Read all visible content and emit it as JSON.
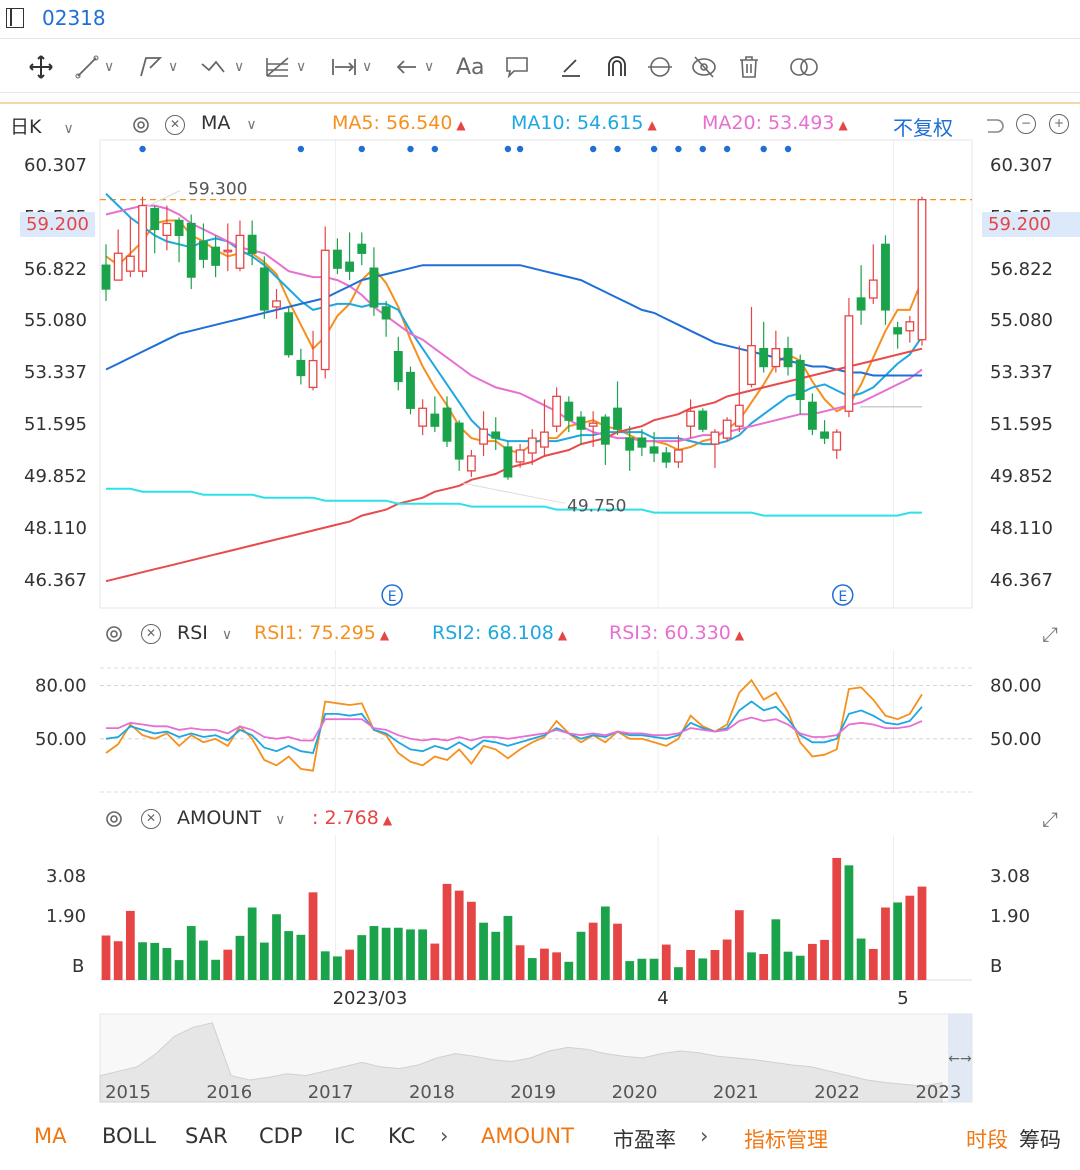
{
  "header": {
    "stock_code": "02318"
  },
  "kline_header": {
    "period": "日K",
    "indicator": "MA",
    "ma5_label": "MA5:",
    "ma5_value": "56.540",
    "ma10_label": "MA10:",
    "ma10_value": "54.615",
    "ma20_label": "MA20:",
    "ma20_value": "53.493",
    "adjust": "不复权"
  },
  "rsi_header": {
    "indicator": "RSI",
    "rsi1_label": "RSI1:",
    "rsi1_value": "75.295",
    "rsi2_label": "RSI2:",
    "rsi2_value": "68.108",
    "rsi3_label": "RSI3:",
    "rsi3_value": "60.330"
  },
  "amount_header": {
    "indicator": "AMOUNT",
    "value": ": 2.768"
  },
  "price_axis": [
    "60.307",
    "58.565",
    "56.822",
    "55.080",
    "53.337",
    "51.595",
    "49.852",
    "48.110",
    "46.367"
  ],
  "current_price": "59.200",
  "rsi_axis": [
    "80.00",
    "50.00"
  ],
  "amount_axis": [
    "3.08",
    "1.90",
    "B"
  ],
  "x_axis": [
    "2023/03",
    "4",
    "5"
  ],
  "overview_years": [
    "2015",
    "2016",
    "2017",
    "2018",
    "2019",
    "2020",
    "2021",
    "2022",
    "2023"
  ],
  "bottom_tabs": [
    "MA",
    "BOLL",
    "SAR",
    "CDP",
    "IC",
    "KC",
    "AMOUNT",
    "市盈率",
    "指标管理",
    "时段",
    "筹码"
  ],
  "colors": {
    "up": "#e64545",
    "down": "#1aa34a",
    "ma5": "#f5901e",
    "ma10": "#1ea7e0",
    "ma20": "#e86fd2",
    "ma60": "#1e6fd6",
    "ma120": "#e84b4b",
    "ma250": "#2ee0e8"
  },
  "chart_data": {
    "type": "candlestick",
    "title": "",
    "ylim": [
      45.5,
      61.2
    ],
    "annotations": [
      {
        "text": "59.300",
        "value": 59.3
      },
      {
        "text": "49.750",
        "value": 49.75
      }
    ],
    "event_markers": [
      "E",
      "E"
    ],
    "candles": [
      [
        57.0,
        56.2,
        57.7,
        55.8
      ],
      [
        56.5,
        57.4,
        58.2,
        56.5
      ],
      [
        56.8,
        57.3,
        58.6,
        56.6
      ],
      [
        56.8,
        59.0,
        59.3,
        56.6
      ],
      [
        58.9,
        58.2,
        59.0,
        57.4
      ],
      [
        58.0,
        58.4,
        59.0,
        57.5
      ],
      [
        58.5,
        58.0,
        58.6,
        57.1
      ],
      [
        58.4,
        56.6,
        58.7,
        56.2
      ],
      [
        57.8,
        57.2,
        58.4,
        56.9
      ],
      [
        57.6,
        57.0,
        58.0,
        56.6
      ],
      [
        57.5,
        57.5,
        58.4,
        56.8
      ],
      [
        56.9,
        58.0,
        58.5,
        56.8
      ],
      [
        58.0,
        57.4,
        58.5,
        57.0
      ],
      [
        56.9,
        55.5,
        57.3,
        55.2
      ],
      [
        55.6,
        55.8,
        56.2,
        55.2
      ],
      [
        55.4,
        54.0,
        55.6,
        53.9
      ],
      [
        53.8,
        53.3,
        54.2,
        53.0
      ],
      [
        52.9,
        53.8,
        54.8,
        52.8
      ],
      [
        53.5,
        57.5,
        58.3,
        53.2
      ],
      [
        57.5,
        56.9,
        57.9,
        56.7
      ],
      [
        57.1,
        56.8,
        58.1,
        56.5
      ],
      [
        57.7,
        57.4,
        58.1,
        57.0
      ],
      [
        56.9,
        55.6,
        57.6,
        55.3
      ],
      [
        55.6,
        55.2,
        55.8,
        54.6
      ],
      [
        54.1,
        53.1,
        54.6,
        52.8
      ],
      [
        53.4,
        52.2,
        53.6,
        52.0
      ],
      [
        51.6,
        52.2,
        52.5,
        51.3
      ],
      [
        52.0,
        51.6,
        52.6,
        51.4
      ],
      [
        52.2,
        51.1,
        52.6,
        50.9
      ],
      [
        51.7,
        50.5,
        51.8,
        50.1
      ],
      [
        50.1,
        50.6,
        50.8,
        49.9
      ],
      [
        51.0,
        51.5,
        52.1,
        50.6
      ],
      [
        51.4,
        51.2,
        51.9,
        50.8
      ],
      [
        50.9,
        49.9,
        51.1,
        49.8
      ],
      [
        50.4,
        50.8,
        51.0,
        50.2
      ],
      [
        50.7,
        51.2,
        51.5,
        50.3
      ],
      [
        50.9,
        51.4,
        52.5,
        50.6
      ],
      [
        51.6,
        52.6,
        52.9,
        51.4
      ],
      [
        52.4,
        51.8,
        52.6,
        51.4
      ],
      [
        51.9,
        51.5,
        52.1,
        51.0
      ],
      [
        51.6,
        51.7,
        52.1,
        50.9
      ],
      [
        51.9,
        51.0,
        52.0,
        50.3
      ],
      [
        52.2,
        51.5,
        53.1,
        51.3
      ],
      [
        51.2,
        50.8,
        51.6,
        50.1
      ],
      [
        51.2,
        50.9,
        51.5,
        50.6
      ],
      [
        50.9,
        50.7,
        51.4,
        50.4
      ],
      [
        50.7,
        50.4,
        50.9,
        50.2
      ],
      [
        50.4,
        50.8,
        51.3,
        50.2
      ],
      [
        51.6,
        52.1,
        52.5,
        51.2
      ],
      [
        52.1,
        51.5,
        52.2,
        51.4
      ],
      [
        51.0,
        51.4,
        51.5,
        50.2
      ],
      [
        51.2,
        51.8,
        51.9,
        51.1
      ],
      [
        51.6,
        52.3,
        54.3,
        51.4
      ],
      [
        53.0,
        54.3,
        55.6,
        52.9
      ],
      [
        54.2,
        53.6,
        55.1,
        53.4
      ],
      [
        53.6,
        54.2,
        54.8,
        53.4
      ],
      [
        54.2,
        53.6,
        54.6,
        53.3
      ],
      [
        53.8,
        52.5,
        54.0,
        52.0
      ],
      [
        52.4,
        51.5,
        52.7,
        51.3
      ],
      [
        51.4,
        51.2,
        51.8,
        51.0
      ],
      [
        50.8,
        51.4,
        51.5,
        50.5
      ],
      [
        52.1,
        55.3,
        55.9,
        51.9
      ],
      [
        55.9,
        55.5,
        57.0,
        55.0
      ],
      [
        55.9,
        56.5,
        57.7,
        55.7
      ],
      [
        57.7,
        55.5,
        58.0,
        55.0
      ],
      [
        54.9,
        54.7,
        55.1,
        54.2
      ],
      [
        54.8,
        55.1,
        55.3,
        54.4
      ],
      [
        54.5,
        59.2,
        59.3,
        54.3
      ]
    ],
    "ma_series": [
      {
        "name": "MA5",
        "values": [
          57.3,
          57.0,
          57.4,
          57.8,
          58.4,
          58.5,
          58.5,
          58.0,
          57.8,
          57.5,
          57.3,
          57.4,
          57.4,
          57.1,
          56.7,
          55.8,
          55.0,
          54.2,
          54.6,
          55.3,
          55.7,
          56.5,
          56.9,
          56.4,
          55.6,
          54.5,
          53.6,
          52.9,
          52.3,
          51.6,
          51.2,
          51.1,
          51.1,
          50.8,
          50.7,
          51.0,
          51.2,
          51.2,
          51.6,
          51.7,
          51.8,
          51.6,
          51.5,
          51.3,
          51.1,
          51.1,
          51.0,
          50.8,
          50.9,
          51.1,
          51.2,
          51.5,
          51.8,
          52.4,
          53.0,
          53.7,
          54.0,
          53.8,
          53.1,
          52.5,
          52.1,
          52.3,
          53.0,
          53.9,
          54.8,
          55.5,
          55.5,
          56.5
        ]
      },
      {
        "name": "MA10",
        "values": [
          59.4,
          59.0,
          58.6,
          58.3,
          58.0,
          57.8,
          57.7,
          57.6,
          57.8,
          57.9,
          57.8,
          57.5,
          57.3,
          57.0,
          56.6,
          56.2,
          55.8,
          55.5,
          55.6,
          55.7,
          55.7,
          55.6,
          55.7,
          55.7,
          55.5,
          54.8,
          54.2,
          53.6,
          53.0,
          52.4,
          51.8,
          51.4,
          51.2,
          51.1,
          51.1,
          51.1,
          51.1,
          51.1,
          51.2,
          51.3,
          51.3,
          51.4,
          51.4,
          51.4,
          51.4,
          51.2,
          51.2,
          51.2,
          51.1,
          51.0,
          51.0,
          51.1,
          51.3,
          51.7,
          52.0,
          52.3,
          52.6,
          52.7,
          52.9,
          53.0,
          52.8,
          52.6,
          52.7,
          52.9,
          53.3,
          53.7,
          54.0,
          54.6
        ]
      },
      {
        "name": "MA20",
        "values": [
          58.7,
          58.8,
          58.9,
          59.0,
          59.0,
          58.9,
          58.7,
          58.4,
          58.2,
          58.0,
          57.8,
          57.6,
          57.5,
          57.4,
          57.1,
          56.8,
          56.7,
          56.6,
          56.6,
          56.5,
          56.3,
          56.0,
          55.6,
          55.3,
          55.0,
          54.7,
          54.5,
          54.2,
          53.9,
          53.6,
          53.3,
          53.1,
          52.9,
          52.8,
          52.7,
          52.5,
          52.3,
          52.1,
          51.8,
          51.6,
          51.4,
          51.3,
          51.2,
          51.2,
          51.1,
          51.1,
          51.1,
          51.1,
          51.2,
          51.3,
          51.3,
          51.4,
          51.5,
          51.6,
          51.7,
          51.8,
          51.9,
          52.0,
          52.0,
          52.1,
          52.2,
          52.3,
          52.4,
          52.6,
          52.8,
          53.0,
          53.2,
          53.5
        ]
      },
      {
        "name": "MA60",
        "values": [
          53.5,
          53.7,
          53.9,
          54.1,
          54.3,
          54.5,
          54.7,
          54.8,
          54.9,
          55.0,
          55.1,
          55.2,
          55.3,
          55.4,
          55.5,
          55.6,
          55.7,
          55.8,
          55.9,
          56.1,
          56.3,
          56.5,
          56.6,
          56.7,
          56.8,
          56.9,
          57.0,
          57.0,
          57.0,
          57.0,
          57.0,
          57.0,
          57.0,
          57.0,
          57.0,
          56.9,
          56.8,
          56.7,
          56.6,
          56.5,
          56.3,
          56.1,
          55.9,
          55.7,
          55.5,
          55.4,
          55.2,
          55.0,
          54.8,
          54.6,
          54.4,
          54.3,
          54.2,
          54.1,
          54.0,
          53.9,
          53.8,
          53.7,
          53.6,
          53.6,
          53.5,
          53.4,
          53.4,
          53.3,
          53.3,
          53.3,
          53.3,
          53.3
        ]
      },
      {
        "name": "MA120",
        "values": [
          46.4,
          46.5,
          46.6,
          46.7,
          46.8,
          46.9,
          47.0,
          47.1,
          47.2,
          47.3,
          47.4,
          47.5,
          47.6,
          47.7,
          47.8,
          47.9,
          48.0,
          48.1,
          48.2,
          48.3,
          48.4,
          48.6,
          48.7,
          48.8,
          49.0,
          49.1,
          49.2,
          49.4,
          49.5,
          49.6,
          49.8,
          49.9,
          50.0,
          50.2,
          50.3,
          50.4,
          50.6,
          50.7,
          50.8,
          51.0,
          51.1,
          51.2,
          51.4,
          51.5,
          51.6,
          51.8,
          51.9,
          52.0,
          52.2,
          52.3,
          52.4,
          52.6,
          52.7,
          52.8,
          52.9,
          53.0,
          53.1,
          53.2,
          53.3,
          53.4,
          53.5,
          53.6,
          53.7,
          53.8,
          53.9,
          54.0,
          54.1,
          54.2
        ]
      },
      {
        "name": "MA250",
        "values": [
          49.5,
          49.5,
          49.5,
          49.4,
          49.4,
          49.4,
          49.4,
          49.4,
          49.3,
          49.3,
          49.3,
          49.3,
          49.3,
          49.2,
          49.2,
          49.2,
          49.2,
          49.2,
          49.1,
          49.1,
          49.1,
          49.1,
          49.1,
          49.1,
          49.0,
          49.0,
          49.0,
          49.0,
          49.0,
          49.0,
          48.9,
          48.9,
          48.9,
          48.9,
          48.9,
          48.9,
          48.9,
          48.8,
          48.8,
          48.8,
          48.8,
          48.8,
          48.8,
          48.8,
          48.8,
          48.7,
          48.7,
          48.7,
          48.7,
          48.7,
          48.7,
          48.7,
          48.7,
          48.7,
          48.6,
          48.6,
          48.6,
          48.6,
          48.6,
          48.6,
          48.6,
          48.6,
          48.6,
          48.6,
          48.6,
          48.6,
          48.7,
          48.7
        ]
      }
    ],
    "rsi": {
      "ylim": [
        20,
        100
      ],
      "series": [
        {
          "name": "RSI1",
          "values": [
            42,
            47,
            58,
            52,
            50,
            53,
            46,
            52,
            48,
            50,
            46,
            57,
            50,
            38,
            35,
            40,
            33,
            32,
            71,
            70,
            69,
            70,
            55,
            52,
            42,
            37,
            35,
            40,
            38,
            44,
            36,
            46,
            44,
            39,
            44,
            48,
            51,
            60,
            53,
            48,
            52,
            48,
            54,
            50,
            50,
            48,
            46,
            50,
            63,
            57,
            54,
            58,
            76,
            83,
            72,
            76,
            65,
            48,
            40,
            41,
            44,
            78,
            79,
            72,
            63,
            61,
            64,
            75
          ]
        },
        {
          "name": "RSI2",
          "values": [
            50,
            51,
            57,
            55,
            53,
            54,
            51,
            53,
            51,
            52,
            49,
            55,
            52,
            45,
            43,
            46,
            43,
            42,
            64,
            64,
            63,
            64,
            55,
            53,
            48,
            44,
            43,
            46,
            44,
            48,
            44,
            49,
            48,
            46,
            48,
            50,
            52,
            56,
            53,
            50,
            52,
            51,
            54,
            52,
            52,
            51,
            50,
            52,
            59,
            56,
            54,
            56,
            66,
            71,
            66,
            68,
            61,
            52,
            48,
            48,
            50,
            64,
            66,
            63,
            59,
            58,
            60,
            68
          ]
        },
        {
          "name": "RSI3",
          "values": [
            56,
            56,
            59,
            58,
            57,
            57,
            55,
            56,
            55,
            55,
            53,
            57,
            55,
            51,
            50,
            51,
            49,
            49,
            61,
            61,
            61,
            61,
            56,
            55,
            52,
            50,
            49,
            50,
            49,
            51,
            49,
            51,
            51,
            50,
            51,
            52,
            53,
            55,
            53,
            52,
            53,
            52,
            54,
            53,
            53,
            52,
            52,
            53,
            56,
            55,
            54,
            55,
            60,
            62,
            60,
            61,
            58,
            53,
            51,
            51,
            52,
            58,
            59,
            58,
            56,
            56,
            57,
            60
          ]
        }
      ]
    },
    "amount": {
      "ylim": [
        0,
        4.3
      ],
      "values": [
        1.32,
        1.15,
        2.05,
        1.12,
        1.1,
        0.95,
        0.59,
        1.6,
        1.17,
        0.6,
        0.9,
        1.31,
        2.15,
        1.11,
        1.95,
        1.45,
        1.34,
        2.6,
        0.85,
        0.7,
        0.9,
        1.33,
        1.6,
        1.55,
        1.55,
        1.5,
        1.5,
        1.08,
        2.85,
        2.65,
        2.32,
        1.7,
        1.43,
        1.9,
        1.03,
        0.65,
        0.93,
        0.82,
        0.54,
        1.43,
        1.7,
        2.18,
        1.67,
        0.56,
        0.63,
        0.63,
        1.05,
        0.38,
        0.89,
        0.64,
        0.89,
        1.2,
        2.07,
        0.82,
        0.77,
        1.8,
        0.84,
        0.72,
        1.07,
        1.19,
        3.62,
        3.4,
        1.23,
        0.92,
        2.15,
        2.3,
        2.5,
        2.77
      ],
      "up": [
        1,
        1,
        1,
        0,
        0,
        0,
        0,
        0,
        0,
        0,
        1,
        0,
        0,
        0,
        0,
        0,
        0,
        1,
        0,
        0,
        1,
        0,
        0,
        0,
        0,
        0,
        0,
        1,
        1,
        1,
        1,
        0,
        0,
        0,
        1,
        0,
        1,
        1,
        0,
        0,
        1,
        0,
        1,
        0,
        0,
        0,
        1,
        0,
        1,
        0,
        1,
        1,
        1,
        0,
        1,
        0,
        0,
        0,
        1,
        1,
        1,
        0,
        0,
        1,
        1,
        0,
        1,
        1
      ]
    }
  }
}
